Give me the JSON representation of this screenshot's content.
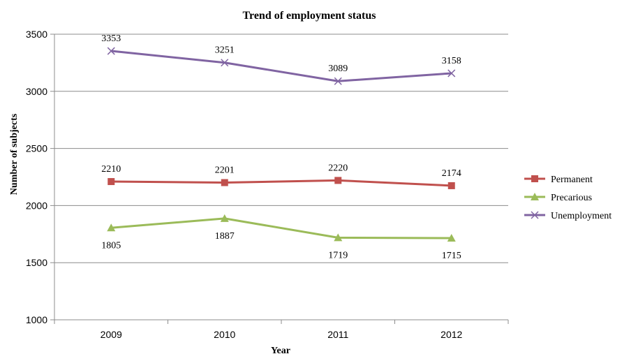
{
  "chart_data": {
    "type": "line",
    "title": "Trend of employment status",
    "xlabel": "Year",
    "ylabel": "Number of subjects",
    "categories": [
      "2009",
      "2010",
      "2011",
      "2012"
    ],
    "ylim": [
      1000,
      3500
    ],
    "yticks": [
      1000,
      1500,
      2000,
      2500,
      3000,
      3500
    ],
    "grid": true,
    "legend_position": "right",
    "series": [
      {
        "name": "Permanent",
        "values": [
          2210,
          2201,
          2220,
          2174
        ],
        "color": "#c0504d",
        "marker": "square",
        "label_position": "above"
      },
      {
        "name": "Precarious",
        "values": [
          1805,
          1887,
          1719,
          1715
        ],
        "color": "#9bbb59",
        "marker": "triangle",
        "label_position": "below"
      },
      {
        "name": "Unemployment",
        "values": [
          3353,
          3251,
          3089,
          3158
        ],
        "color": "#8064a2",
        "marker": "x",
        "label_position": "above"
      }
    ]
  }
}
